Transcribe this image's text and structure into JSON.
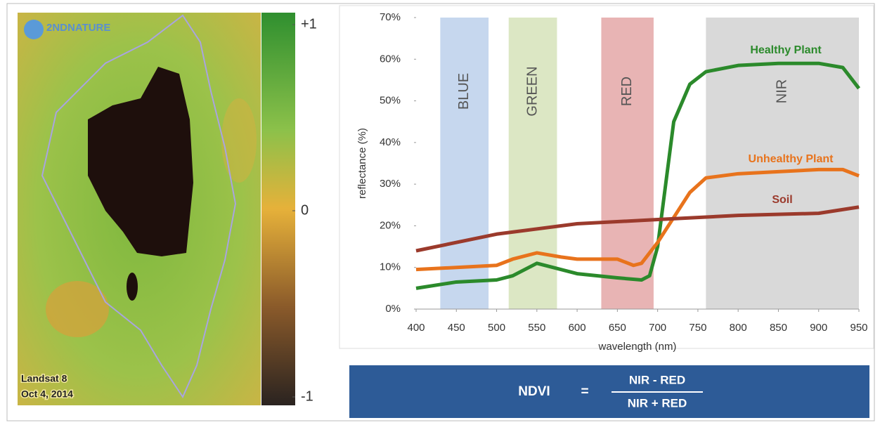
{
  "image": {
    "logo": "2NDNATURE",
    "caption": [
      "Landsat 8",
      "Oct 4, 2014"
    ],
    "colorbar": {
      "lim": [
        -1,
        1
      ],
      "ticks": [
        {
          "value": 1,
          "label": "+1"
        },
        0,
        {
          "value": -1,
          "label": "-1"
        }
      ]
    }
  },
  "chart_data": {
    "type": "line",
    "xlabel": "wavelength (nm)",
    "ylabel": "reflectance (%)",
    "xlim": [
      400,
      950
    ],
    "xticks": [
      400,
      450,
      500,
      550,
      600,
      650,
      700,
      750,
      800,
      850,
      900,
      950
    ],
    "ylim": [
      0,
      70
    ],
    "yticks": [
      {
        "value": 0,
        "label": "0%"
      },
      {
        "value": 10,
        "label": "10%"
      },
      {
        "value": 20,
        "label": "20%"
      },
      {
        "value": 30,
        "label": "30%"
      },
      {
        "value": 40,
        "label": "40%"
      },
      {
        "value": 50,
        "label": "50%"
      },
      {
        "value": 60,
        "label": "60%"
      },
      {
        "value": 70,
        "label": "70%"
      }
    ],
    "grid": false,
    "bands": [
      {
        "label": "BLUE",
        "range": [
          430,
          490
        ],
        "color": "#c6d7ee"
      },
      {
        "label": "GREEN",
        "range": [
          515,
          575
        ],
        "color": "#dce7c4"
      },
      {
        "label": "RED",
        "range": [
          630,
          695
        ],
        "color": "#e8b4b4"
      },
      {
        "label": "NIR",
        "range": [
          760,
          950
        ],
        "color": "#d9d9d9"
      }
    ],
    "series": [
      {
        "name": "Healthy Plant",
        "color": "#2b8a2b",
        "x": [
          400,
          450,
          500,
          520,
          550,
          570,
          600,
          650,
          680,
          690,
          700,
          710,
          720,
          740,
          760,
          800,
          850,
          900,
          930,
          950
        ],
        "values": [
          5,
          6.5,
          7,
          8,
          11,
          10,
          8.5,
          7.5,
          7,
          8,
          15,
          30,
          45,
          54,
          57,
          58.5,
          59,
          59,
          58,
          53
        ]
      },
      {
        "name": "Unhealthy Plant",
        "color": "#e8731c",
        "x": [
          400,
          450,
          500,
          520,
          550,
          580,
          600,
          650,
          670,
          680,
          700,
          720,
          740,
          760,
          800,
          850,
          900,
          930,
          950
        ],
        "values": [
          9.5,
          10,
          10.5,
          12,
          13.5,
          12.5,
          12,
          12,
          10.5,
          11,
          16,
          22,
          28,
          31.5,
          32.5,
          33,
          33.5,
          33.5,
          32
        ]
      },
      {
        "name": "Soil",
        "color": "#9b3a2c",
        "x": [
          400,
          500,
          600,
          700,
          800,
          900,
          950
        ],
        "values": [
          14,
          18,
          20.5,
          21.5,
          22.5,
          23,
          24.5
        ]
      }
    ]
  },
  "formula": {
    "lhs": "NDVI",
    "equals": "=",
    "numerator": "NIR - RED",
    "denominator": "NIR + RED"
  }
}
